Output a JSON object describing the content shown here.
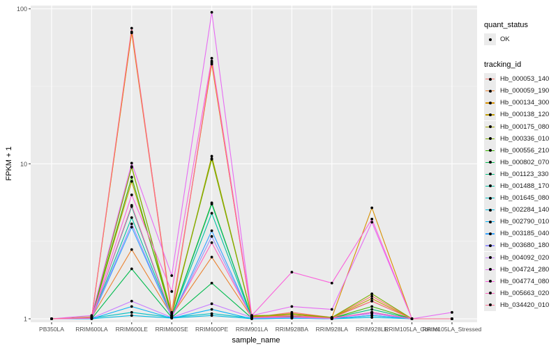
{
  "chart_data": {
    "type": "line",
    "log_y": true,
    "xlabel": "sample_name",
    "ylabel": "FPKM + 1",
    "ylim": [
      1,
      100
    ],
    "yticks": [
      1,
      10,
      100
    ],
    "categories": [
      "PB350LA",
      "RRIM600LA",
      "RRIM600LE",
      "RRIM600SE",
      "RRIM600PE",
      "RRIM901LA",
      "RRIM928BA",
      "RRIM928LA",
      "RRIM928LE",
      "RRIM105LA_Control",
      "RRIM105LA_Stressed"
    ],
    "legend_quant_title": "quant_status",
    "legend_quant_label": "OK",
    "legend_title": "tracking_id",
    "grid": true,
    "series": [
      {
        "name": "Hb_000053_140",
        "color": "#F8766D",
        "values": [
          1,
          1.02,
          70,
          1.05,
          45,
          1.02,
          1.1,
          1.02,
          1.4,
          1,
          1
        ]
      },
      {
        "name": "Hb_000059_190",
        "color": "#EA8331",
        "values": [
          1,
          1.02,
          2.8,
          1.05,
          2.5,
          1.02,
          1.05,
          1.02,
          1.3,
          1,
          1
        ]
      },
      {
        "name": "Hb_000134_300",
        "color": "#D89000",
        "values": [
          1,
          1.01,
          71,
          1.1,
          44,
          1.05,
          1.05,
          1.02,
          5.2,
          1,
          1
        ]
      },
      {
        "name": "Hb_000138_120",
        "color": "#C09B00",
        "values": [
          1,
          1.02,
          7.7,
          1.1,
          10.8,
          1.03,
          1.08,
          1.02,
          1.35,
          1,
          1
        ]
      },
      {
        "name": "Hb_000175_080",
        "color": "#A3A500",
        "values": [
          1,
          1.02,
          9.6,
          1.05,
          11.2,
          1.03,
          1.05,
          1.02,
          1.3,
          1,
          1
        ]
      },
      {
        "name": "Hb_000336_010",
        "color": "#7CAE00",
        "values": [
          1,
          1.03,
          9.5,
          1.08,
          10.7,
          1.04,
          1.07,
          1.02,
          1.45,
          1,
          1
        ]
      },
      {
        "name": "Hb_000556_210",
        "color": "#39B600",
        "values": [
          1,
          1.02,
          8.2,
          1.04,
          5.6,
          1.02,
          1.04,
          1.01,
          1.2,
          1,
          1
        ]
      },
      {
        "name": "Hb_000802_070",
        "color": "#00BB4E",
        "values": [
          1,
          1.0,
          2.1,
          1.02,
          1.7,
          1.01,
          1.02,
          1.0,
          1.1,
          1,
          1
        ]
      },
      {
        "name": "Hb_001123_330",
        "color": "#00BF7D",
        "values": [
          1,
          1.01,
          5.3,
          1.03,
          5.5,
          1.02,
          1.03,
          1.01,
          1.15,
          1,
          1
        ]
      },
      {
        "name": "Hb_001488_170",
        "color": "#00C1A3",
        "values": [
          1,
          1.01,
          4.5,
          1.03,
          4.8,
          1.01,
          1.02,
          1.0,
          1.1,
          1,
          1
        ]
      },
      {
        "name": "Hb_001645_080",
        "color": "#00BFC4",
        "values": [
          1,
          1.01,
          1.1,
          1.02,
          1.08,
          1.01,
          1.02,
          1.0,
          1.05,
          1,
          1
        ]
      },
      {
        "name": "Hb_002284_140",
        "color": "#00BAE0",
        "values": [
          1,
          1.0,
          1.05,
          1.01,
          1.05,
          1.0,
          1.01,
          1.0,
          1.02,
          1,
          1
        ]
      },
      {
        "name": "Hb_002790_010",
        "color": "#00B0F6",
        "values": [
          1,
          1.0,
          1.2,
          1.01,
          1.15,
          1.0,
          1.01,
          1.0,
          1.05,
          1,
          1
        ]
      },
      {
        "name": "Hb_003185_040",
        "color": "#35A2FF",
        "values": [
          1,
          1.01,
          3.9,
          1.02,
          3.7,
          1.01,
          1.02,
          1.0,
          1.1,
          1,
          1
        ]
      },
      {
        "name": "Hb_003680_180",
        "color": "#9590FF",
        "values": [
          1,
          1.01,
          4.1,
          1.02,
          3.4,
          1.01,
          1.02,
          1.0,
          1.1,
          1,
          1
        ]
      },
      {
        "name": "Hb_004092_020",
        "color": "#C77CFF",
        "values": [
          1,
          1.01,
          1.3,
          1.02,
          1.25,
          1.02,
          1.03,
          1.01,
          1.08,
          1,
          1
        ]
      },
      {
        "name": "Hb_004724_280",
        "color": "#E76BF3",
        "values": [
          1,
          1.05,
          10.1,
          1.9,
          95,
          1.05,
          1.2,
          1.15,
          4.2,
          1,
          1.1
        ]
      },
      {
        "name": "Hb_004774_080",
        "color": "#FA62DB",
        "values": [
          1,
          1.02,
          6.3,
          1.5,
          48,
          1.05,
          2.0,
          1.7,
          4.4,
          1,
          1
        ]
      },
      {
        "name": "Hb_005663_020",
        "color": "#FF62BC",
        "values": [
          1,
          1.01,
          5.4,
          1.04,
          3.1,
          1.02,
          1.03,
          1.01,
          1.1,
          1,
          1
        ]
      },
      {
        "name": "Hb_034420_010",
        "color": "#FF6C91",
        "values": [
          1,
          1.02,
          75,
          1.06,
          46,
          1.02,
          1.05,
          1.01,
          1.3,
          1,
          1
        ]
      }
    ]
  }
}
